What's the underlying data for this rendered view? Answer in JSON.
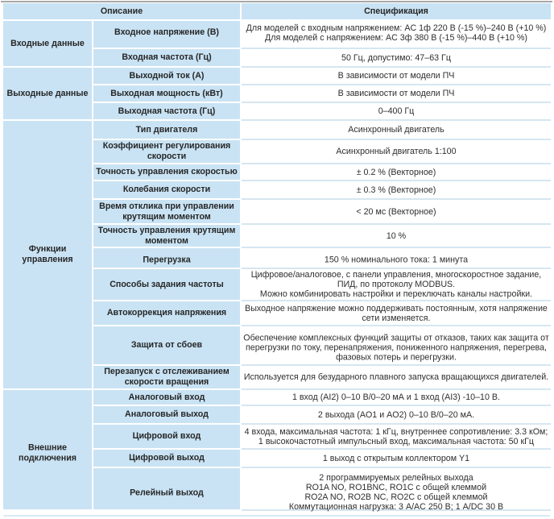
{
  "colors": {
    "cell_blue": "#c9e3f4",
    "spec_separator_blue": "#d6e6f1",
    "top_rule_grey": "#a8a8a8",
    "bottom_edge_blue": "#d9eaf5",
    "text_dark": "#262626"
  },
  "table": {
    "headers": {
      "description": "Описание",
      "specification": "Спецификация"
    },
    "groups": [
      {
        "category": "Входные данные",
        "rows": [
          {
            "desc": "Входное напряжение (В)",
            "spec": "Для моделей с входным напряжением: AC 1ф 220 В (-15 %)–240 В (+10 %)\nДля моделей с напряжением:  AC 3ф 380 В (-15 %)–440 В (+10 %)"
          },
          {
            "desc": "Входная частота (Гц)",
            "spec": "50 Гц, допустимо: 47–63 Гц"
          }
        ]
      },
      {
        "category": "Выходные данные",
        "rows": [
          {
            "desc": "Выходной ток (А)",
            "spec": "В зависимости от модели ПЧ"
          },
          {
            "desc": "Выходная мощность (кВт)",
            "spec": "В зависимости от модели ПЧ"
          },
          {
            "desc": "Выходная частота (Гц)",
            "spec": "0–400 Гц"
          }
        ]
      },
      {
        "category": "Функции\nуправления",
        "rows": [
          {
            "desc": "Тип двигателя",
            "spec": "Асинхронный двигатель"
          },
          {
            "desc": "Коэффициент регулирования\nскорости",
            "spec": "Асинхронный двигатель 1:100"
          },
          {
            "desc": "Точность управления скоростью",
            "spec": "± 0.2 % (Векторное)"
          },
          {
            "desc": "Колебания скорости",
            "spec": "± 0.3 % (Векторное)"
          },
          {
            "desc": "Время отклика при управлении\nкрутящим моментом",
            "spec": "< 20 мс (Векторное)"
          },
          {
            "desc": "Точность управления крутящим\nмоментом",
            "spec": "10 %"
          },
          {
            "desc": "Перегрузка",
            "spec": "150 % номинального тока: 1 минута"
          },
          {
            "desc": "Способы задания частоты",
            "spec": "Цифровое/аналоговое, с панели управления, многоскоростное задание,\nПИД, по протоколу MODBUS.\nМожно комбинировать настройки и переключать каналы настройки."
          },
          {
            "desc": "Автокоррекция напряжения",
            "spec": "Выходное напряжение можно поддерживать постоянным, хотя напряжение\nсети изменяется."
          },
          {
            "desc": "Защита от сбоев",
            "spec": "Обеспечение комплексных функций защиты от отказов, таких как защита от\nперегрузки по току, перенапряжения, пониженного напряжения, перегрева,\nфазовых потерь и перегрузки."
          },
          {
            "desc": "Перезапуск с отслеживанием\nскорости вращения",
            "spec": "Используется для безударного плавного запуска вращающихся двигателей."
          }
        ]
      },
      {
        "category": "Внешние\nподключения",
        "rows": [
          {
            "desc": "Аналоговый вход",
            "spec": "1 вход (AI2) 0–10 В/0–20 мА и 1 вход (AI3) -10–10 В."
          },
          {
            "desc": "Аналоговый выход",
            "spec": "2 выхода (AO1 и AO2) 0–10 В/0–20 мА."
          },
          {
            "desc": "Цифровой вход",
            "spec": "4 входа, максимальная частота: 1 кГц, внутреннее сопротивление: 3.3 кОм;\n1 высокочастотный импульсный вход, максимальная частота: 50 кГц"
          },
          {
            "desc": "Цифровой выход",
            "spec": "1 выход с открытым коллектором Y1"
          },
          {
            "desc": "Релейный выход",
            "spec": "2 программируемых релейных выхода\nRO1A NO, RO1BNC, RO1C с общей клеммой\nRO2A NO, RO2B NC, RO2C с общей клеммой\nКоммутационная нагрузка: 3 А/AC 250 В; 1 А/DC 30 В"
          }
        ]
      }
    ]
  }
}
